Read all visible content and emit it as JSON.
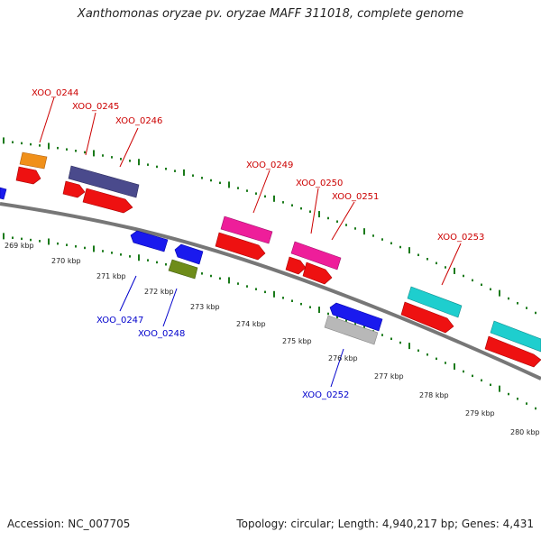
{
  "title": "Xanthomonas oryzae pv. oryzae MAFF 311018, complete genome",
  "footer": {
    "accession": "Accession: NC_007705",
    "summary": "Topology: circular; Length: 4,940,217 bp; Genes: 4,431"
  },
  "colors": {
    "backbone": "#777777",
    "tick_major": "#1a7a1a",
    "tick_minor": "#1a7a1a",
    "label_forward": "#cc0000",
    "label_reverse": "#0000cc",
    "gene_red": "#ee1111",
    "gene_blue": "#1a1aee",
    "gene_orange": "#f0901a",
    "gene_purple": "#4a4a8c",
    "gene_magenta": "#ee1e9a",
    "gene_cyan": "#1ecece",
    "gene_olive": "#6e8c1a",
    "gene_gray": "#b8b8b8"
  },
  "axis": {
    "unit": "kbp",
    "ticks": [
      {
        "pos": 269,
        "label": "269 kbp"
      },
      {
        "pos": 270,
        "label": "270 kbp"
      },
      {
        "pos": 271,
        "label": "271 kbp"
      },
      {
        "pos": 272,
        "label": "272 kbp"
      },
      {
        "pos": 273,
        "label": "273 kbp"
      },
      {
        "pos": 274,
        "label": "274 kbp"
      },
      {
        "pos": 275,
        "label": "275 kbp"
      },
      {
        "pos": 276,
        "label": "276 kbp"
      },
      {
        "pos": 277,
        "label": "277 kbp"
      },
      {
        "pos": 278,
        "label": "278 kbp"
      },
      {
        "pos": 279,
        "label": "279 kbp"
      },
      {
        "pos": 280,
        "label": "280 kbp"
      }
    ]
  },
  "gene_labels": [
    {
      "text": "XOO_0244",
      "strand": "forward"
    },
    {
      "text": "XOO_0245",
      "strand": "forward"
    },
    {
      "text": "XOO_0246",
      "strand": "forward"
    },
    {
      "text": "XOO_0249",
      "strand": "forward"
    },
    {
      "text": "XOO_0250",
      "strand": "forward"
    },
    {
      "text": "XOO_0251",
      "strand": "forward"
    },
    {
      "text": "XOO_0253",
      "strand": "forward"
    },
    {
      "text": "XOO_0247",
      "strand": "reverse"
    },
    {
      "text": "XOO_0248",
      "strand": "reverse"
    },
    {
      "text": "XOO_0252",
      "strand": "reverse"
    }
  ]
}
